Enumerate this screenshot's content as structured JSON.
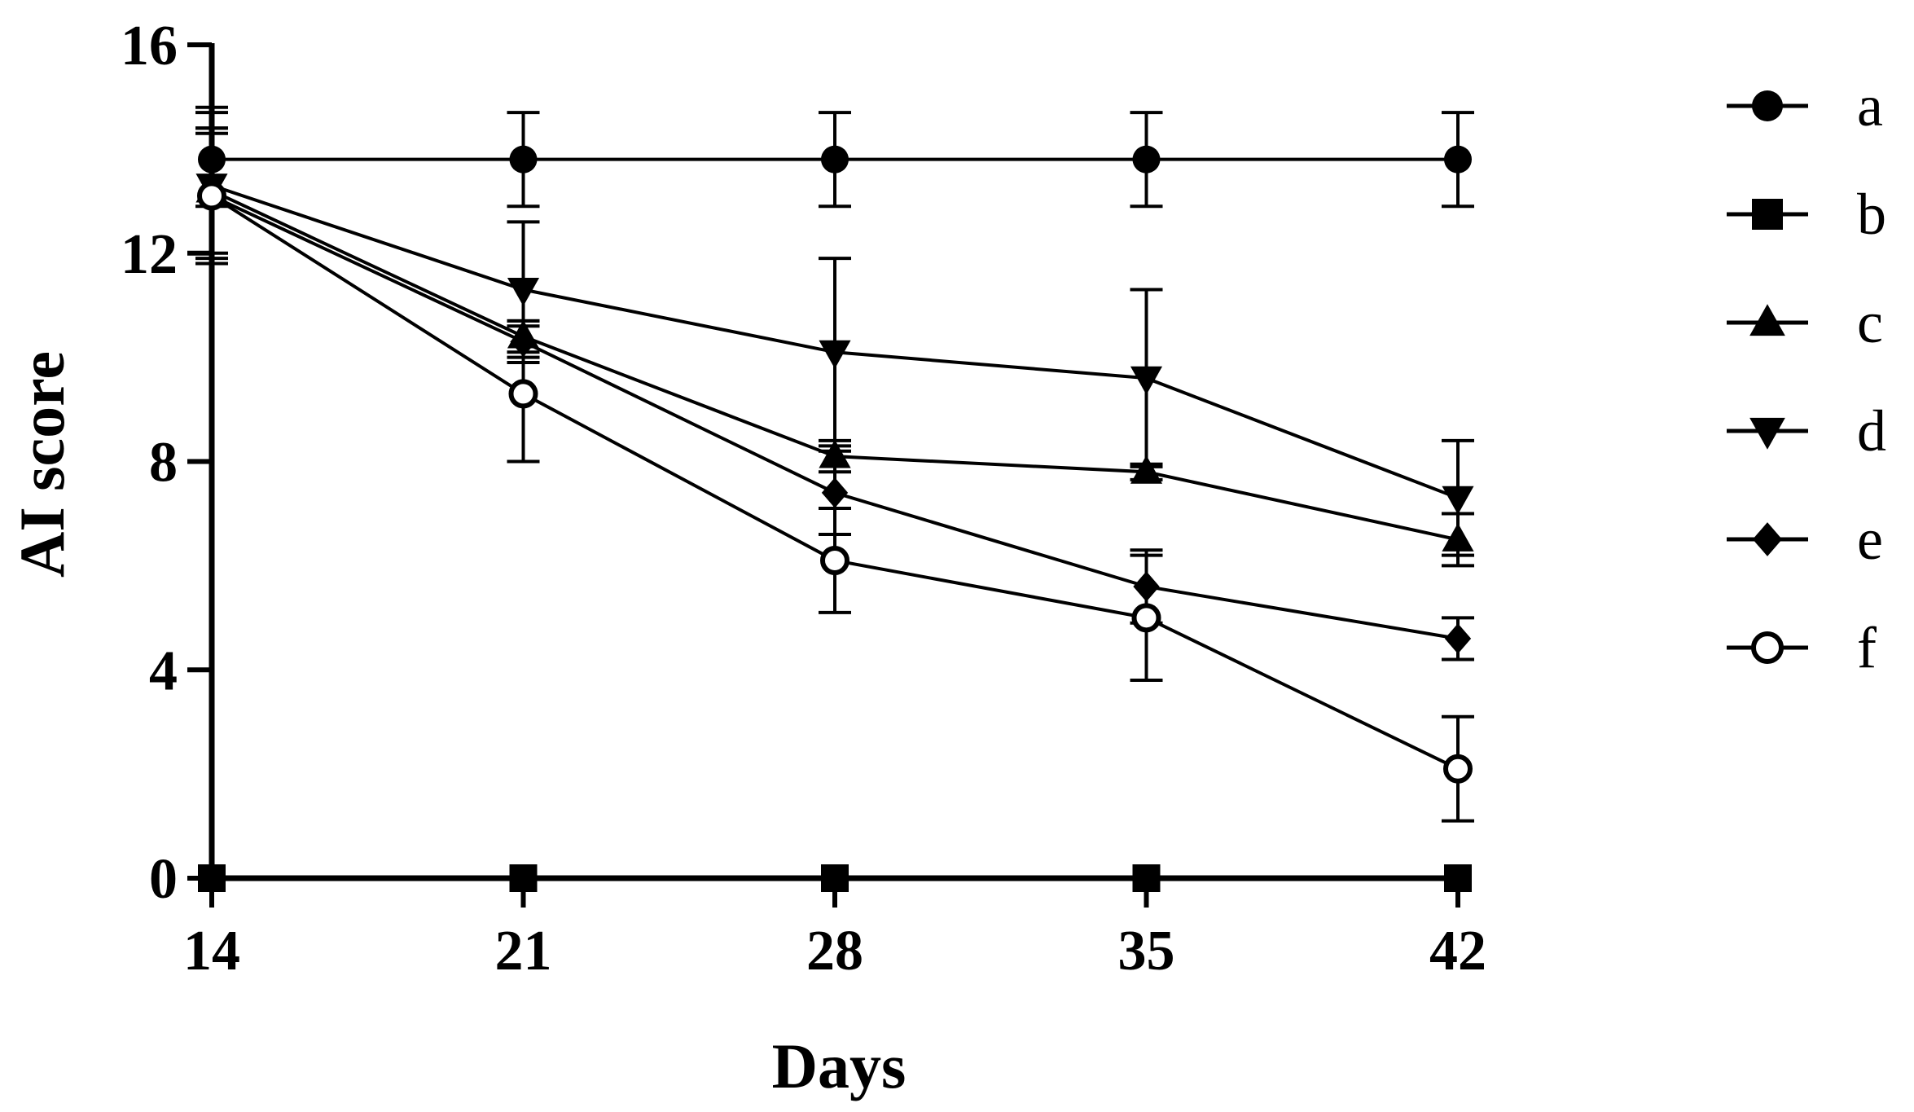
{
  "chart_data": {
    "type": "line",
    "xlabel": "Days",
    "ylabel": "AI score",
    "x": [
      14,
      21,
      28,
      35,
      42
    ],
    "xticks": [
      "14",
      "21",
      "28",
      "35",
      "42"
    ],
    "yticks": [
      "0",
      "4",
      "8",
      "12",
      "16"
    ],
    "xlim": [
      14,
      42
    ],
    "ylim": [
      0,
      16
    ],
    "grid": false,
    "legend_position": "right",
    "series": [
      {
        "name": "a",
        "marker": "circle-filled",
        "values": [
          13.8,
          13.8,
          13.8,
          13.8,
          13.8
        ],
        "errors": [
          0.9,
          0.9,
          0.9,
          0.9,
          0.9
        ]
      },
      {
        "name": "b",
        "marker": "square-filled",
        "values": [
          0,
          0,
          0,
          0,
          0
        ],
        "errors": [
          0,
          0,
          0,
          0,
          0
        ]
      },
      {
        "name": "c",
        "marker": "triangle-up-filled",
        "values": [
          13.2,
          10.4,
          8.1,
          7.8,
          6.5
        ],
        "errors": [
          1.2,
          0.3,
          0.3,
          0.15,
          0.5
        ]
      },
      {
        "name": "d",
        "marker": "triangle-down-filled",
        "values": [
          13.3,
          11.3,
          10.1,
          9.6,
          7.3
        ],
        "errors": [
          1.5,
          1.3,
          1.8,
          1.7,
          1.1
        ]
      },
      {
        "name": "e",
        "marker": "diamond-filled",
        "values": [
          13.1,
          10.3,
          7.4,
          5.6,
          4.6
        ],
        "errors": [
          1.2,
          0.4,
          0.8,
          0.7,
          0.4
        ]
      },
      {
        "name": "f",
        "marker": "circle-open",
        "values": [
          13.1,
          9.3,
          6.1,
          5.0,
          2.1
        ],
        "errors": [
          1.3,
          1.3,
          1.0,
          1.2,
          1.0
        ]
      }
    ]
  }
}
